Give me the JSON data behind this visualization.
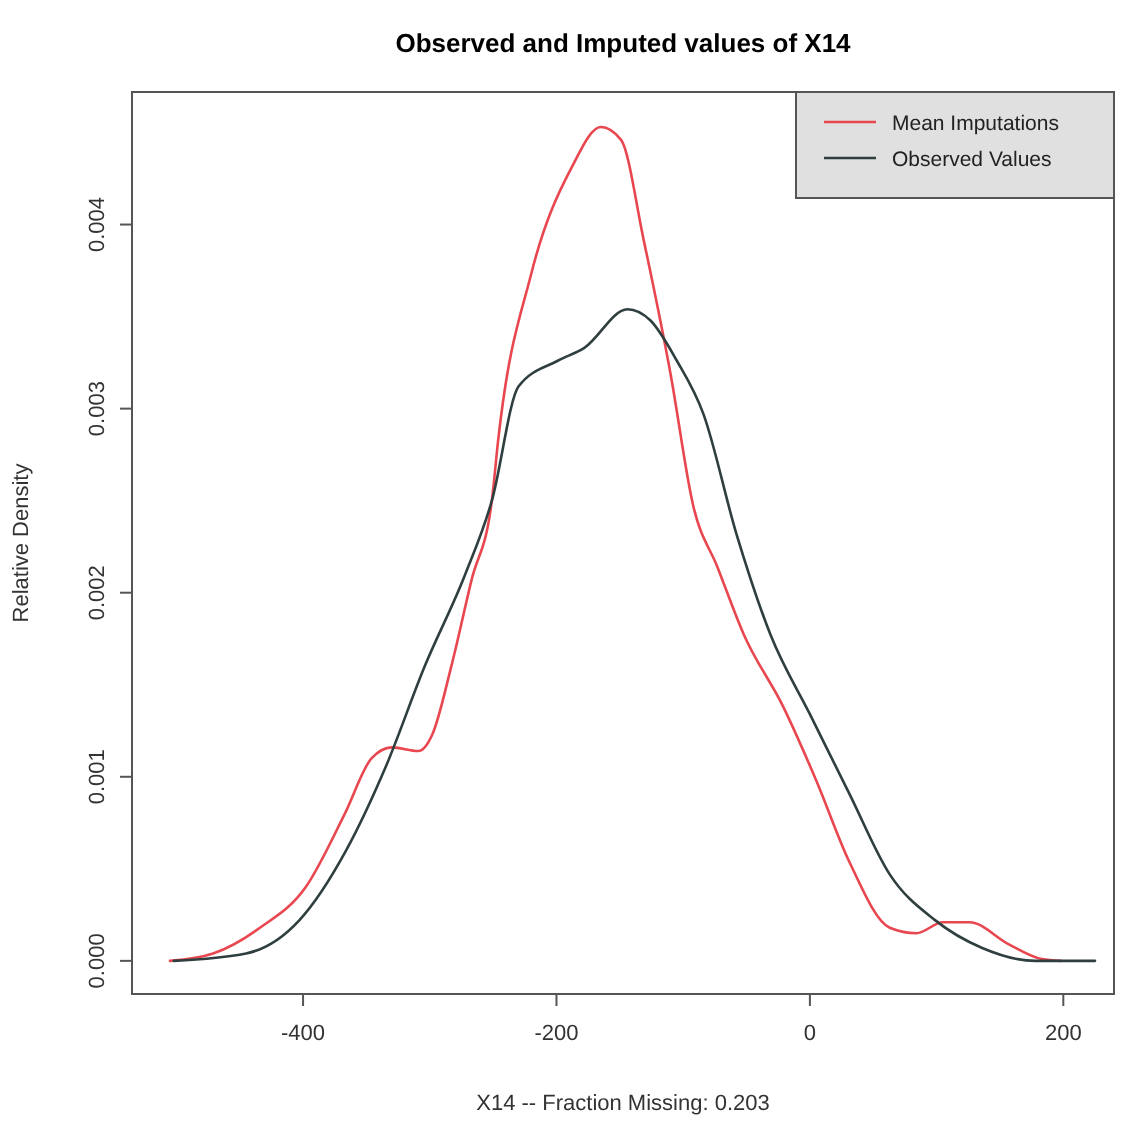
{
  "chart_data": {
    "type": "line",
    "title": "Observed and Imputed values of X14",
    "xlabel": "X14  --  Fraction Missing: 0.203",
    "ylabel": "Relative Density",
    "xlim": [
      -535,
      240
    ],
    "ylim": [
      -0.00018,
      0.00472
    ],
    "xticks": [
      -400,
      -200,
      0,
      200
    ],
    "yticks": [
      {
        "value": 0,
        "label": "0.000"
      },
      {
        "value": 0.001,
        "label": "0.001"
      },
      {
        "value": 0.002,
        "label": "0.002"
      },
      {
        "value": 0.003,
        "label": "0.003"
      },
      {
        "value": 0.004,
        "label": "0.004"
      }
    ],
    "grid": false,
    "legend": "top right",
    "marker": "none",
    "line_style": "solid",
    "series": [
      {
        "name": "Mean Imputations",
        "color": "#e8474f",
        "x": [
          -505,
          -471,
          -434,
          -398,
          -367,
          -346,
          -330,
          -309,
          -298,
          -283,
          -267,
          -251,
          -246,
          -220,
          -188,
          -165,
          -149,
          -131,
          -110,
          -92,
          -73,
          -52,
          -21,
          5,
          31,
          63,
          84,
          105,
          126,
          157,
          183,
          198
        ],
        "values": [
          0,
          4e-05,
          0.00018,
          0.0004,
          0.0008,
          0.0011,
          0.00116,
          0.00114,
          0.00123,
          0.0016,
          0.00207,
          0.0025,
          0.00283,
          0.00373,
          0.00431,
          0.00453,
          0.00446,
          0.00391,
          0.00319,
          0.00247,
          0.00214,
          0.00177,
          0.00138,
          0.00098,
          0.00054,
          0.00018,
          0.00015,
          0.00021,
          0.00021,
          9e-05,
          1e-05,
          0
        ]
      },
      {
        "name": "Observed Values",
        "color": "#2f3f3f",
        "x": [
          -502,
          -445,
          -403,
          -366,
          -335,
          -304,
          -272,
          -251,
          -230,
          -199,
          -178,
          -144,
          -126,
          -105,
          -84,
          -58,
          -31,
          0,
          31,
          63,
          99,
          136,
          178,
          225
        ],
        "values": [
          0,
          4e-05,
          0.00022,
          0.0006,
          0.00105,
          0.0016,
          0.0021,
          0.0025,
          0.00312,
          0.00326,
          0.00333,
          0.00354,
          0.00348,
          0.00326,
          0.00297,
          0.00232,
          0.00177,
          0.00134,
          0.00091,
          0.00047,
          0.00022,
          7e-05,
          0,
          0
        ]
      }
    ]
  }
}
